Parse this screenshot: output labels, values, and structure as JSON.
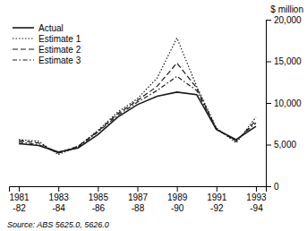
{
  "chart_data": {
    "type": "line",
    "ylabel": "$ million",
    "annotations": [
      "Source:  ABS 5625.0, 5626.0"
    ],
    "categories": [
      "1981\n-82",
      null,
      "1983\n-84",
      null,
      "1985\n-86",
      null,
      "1987\n-88",
      null,
      "1989\n-90",
      null,
      "1991\n-92",
      null,
      "1993\n-94"
    ],
    "series": [
      {
        "name": "Actual",
        "color": "#1a1a1a",
        "line_style": "solid",
        "values": [
          5100,
          4900,
          4100,
          4600,
          6200,
          8300,
          9800,
          10800,
          11300,
          11000,
          6800,
          5600,
          7200
        ]
      },
      {
        "name": "Estimate 1",
        "color": "#1a1a1a",
        "line_style": "dotted",
        "values": [
          5600,
          5400,
          3800,
          4800,
          6700,
          8900,
          10500,
          13000,
          17800,
          12000,
          7000,
          5200,
          8300
        ]
      },
      {
        "name": "Estimate 2",
        "color": "#1a1a1a",
        "line_style": "dashed",
        "values": [
          5500,
          5200,
          4000,
          4800,
          6600,
          8700,
          10300,
          12000,
          14800,
          11800,
          6900,
          5400,
          7900
        ]
      },
      {
        "name": "Estimate 3",
        "color": "#1a1a1a",
        "line_style": "dashdot",
        "values": [
          5300,
          5000,
          4000,
          4700,
          6500,
          8500,
          10100,
          11500,
          13200,
          11500,
          6800,
          5500,
          7600
        ]
      }
    ],
    "ylim": [
      0,
      20000
    ],
    "yticks": [
      0,
      {
        "value": 5000,
        "label": "5,000"
      },
      {
        "value": 10000,
        "label": "10,000"
      },
      {
        "value": 15000,
        "label": "15,000"
      },
      {
        "value": 20000,
        "label": "20,000"
      }
    ],
    "grid": false,
    "legend": "upper left"
  }
}
